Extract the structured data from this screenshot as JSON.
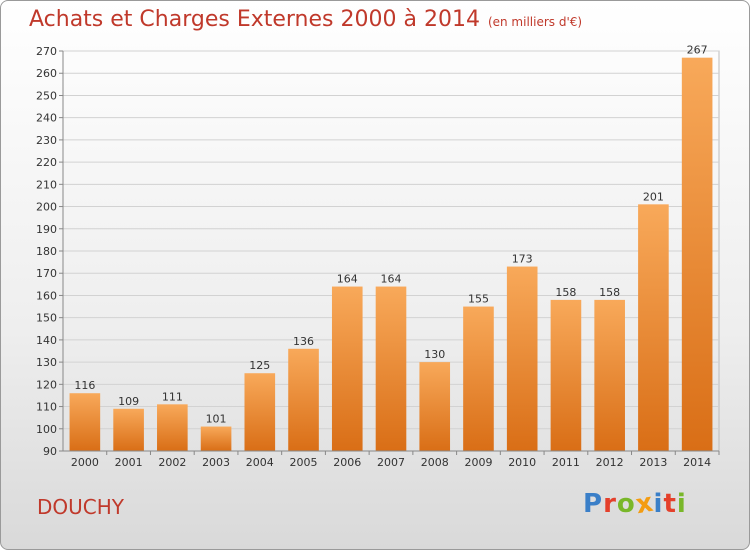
{
  "header": {
    "title": "Achats et Charges Externes 2000 à 2014",
    "subtitle": "(en milliers d'€)"
  },
  "commune": "DOUCHY",
  "logo": {
    "text": "Proxiti",
    "letters": [
      "P",
      "r",
      "o",
      "x",
      "i",
      "t",
      "i"
    ],
    "colors": [
      "#3a7fc8",
      "#e4402b",
      "#79b729",
      "#f39c12",
      "#3a7fc8",
      "#e4402b",
      "#79b729"
    ]
  },
  "chart_data": {
    "type": "bar",
    "categories": [
      "2000",
      "2001",
      "2002",
      "2003",
      "2004",
      "2005",
      "2006",
      "2007",
      "2008",
      "2009",
      "2010",
      "2011",
      "2012",
      "2013",
      "2014"
    ],
    "values": [
      116,
      109,
      111,
      101,
      125,
      136,
      164,
      164,
      130,
      155,
      173,
      158,
      158,
      201,
      267
    ],
    "title": "Achats et Charges Externes 2000 à 2014",
    "xlabel": "",
    "ylabel": "",
    "ylim": [
      90,
      270
    ],
    "yticks": [
      90,
      100,
      110,
      120,
      130,
      140,
      150,
      160,
      170,
      180,
      190,
      200,
      210,
      220,
      230,
      240,
      250,
      260,
      270
    ],
    "grid": true,
    "bar_color": "#f28c28"
  }
}
